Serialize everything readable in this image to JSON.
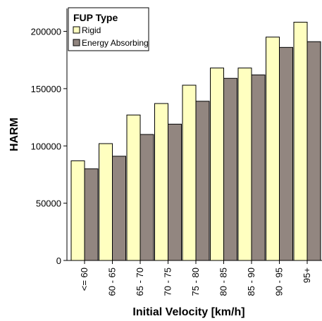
{
  "chart_data": {
    "type": "bar",
    "xlabel": "Initial Velocity [km/h]",
    "ylabel": "HARM",
    "ylim": [
      0,
      220000
    ],
    "yticks": [
      0,
      50000,
      100000,
      150000,
      200000
    ],
    "ytick_labels": [
      "0",
      "50000",
      "100000",
      "150000",
      "200000"
    ],
    "grid": false,
    "legend": {
      "title": "FUP Type",
      "placement": "top-left"
    },
    "categories": [
      "<= 60",
      "60 - 65",
      "65 - 70",
      "70 - 75",
      "75 - 80",
      "80 - 85",
      "85 - 90",
      "90 - 95",
      "95+"
    ],
    "series": [
      {
        "name": "Rigid",
        "color": "#ffffc0",
        "values": [
          87000,
          102000,
          127000,
          137000,
          153000,
          168000,
          168000,
          195000,
          208000
        ]
      },
      {
        "name": "Energy Absorbing",
        "color": "#928680",
        "values": [
          80000,
          91000,
          110000,
          119000,
          139000,
          159000,
          162000,
          186000,
          191000
        ]
      }
    ]
  }
}
